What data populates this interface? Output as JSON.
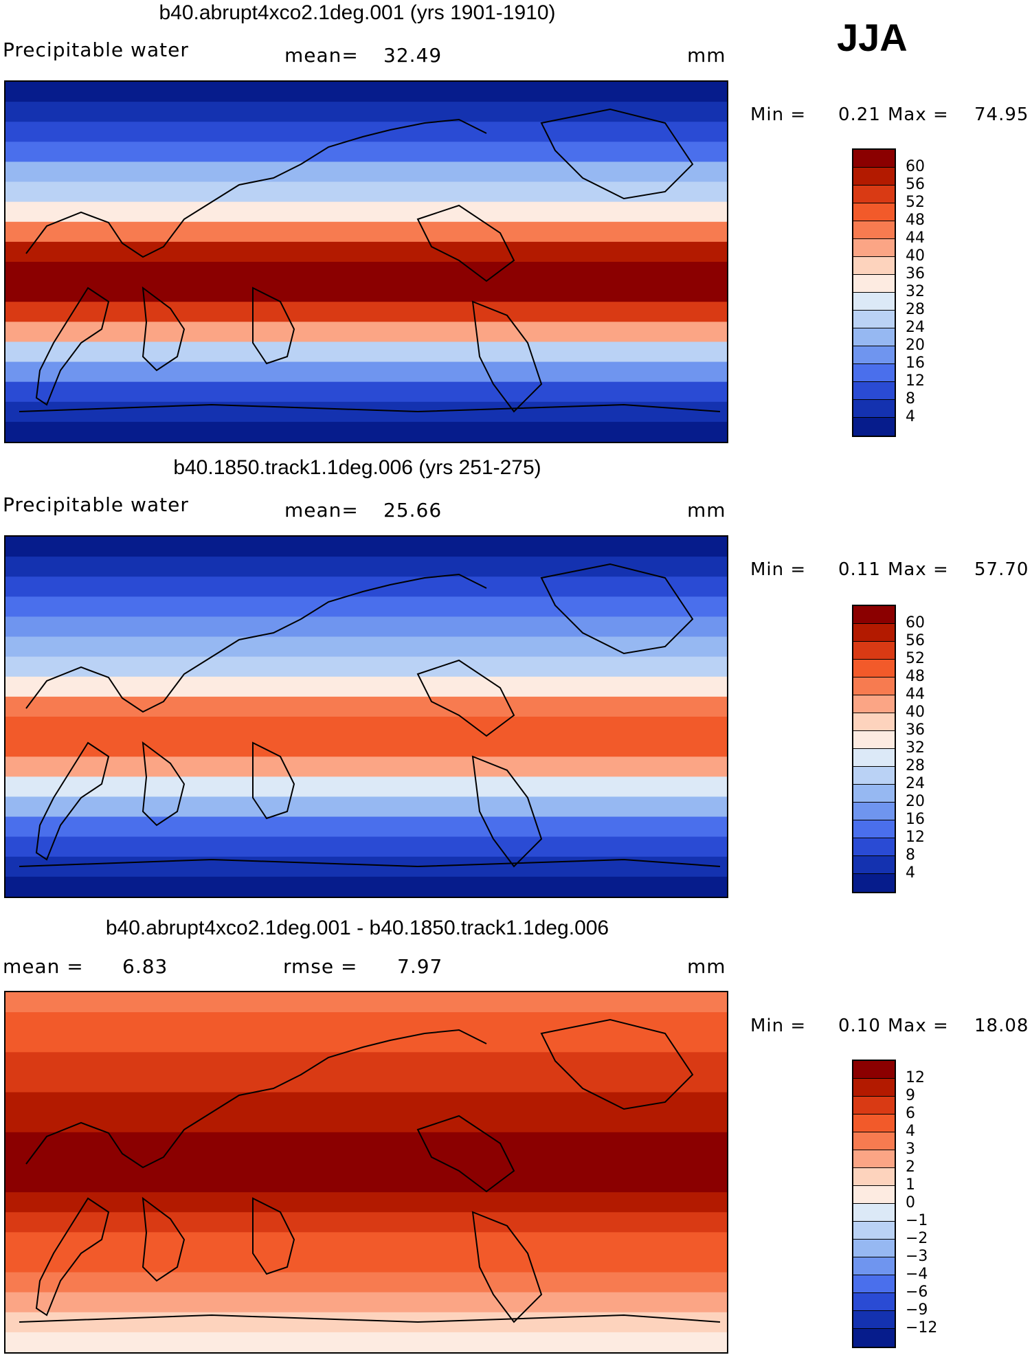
{
  "season": "JJA",
  "panels": [
    {
      "title": "b40.abrupt4xco2.1deg.001 (yrs 1901-1910)",
      "left_label": "Precipitable water",
      "mid_label": "mean=",
      "mid_value": "32.49",
      "units": "mm",
      "min_label": "Min =",
      "min_value": "0.21",
      "max_label": "Max =",
      "max_value": "74.95",
      "levels": [
        "60",
        "56",
        "52",
        "48",
        "44",
        "40",
        "36",
        "32",
        "28",
        "24",
        "20",
        "16",
        "12",
        "8",
        "4"
      ],
      "colors": [
        "#8b0000",
        "#b31a00",
        "#d93a14",
        "#f25a2a",
        "#f77b50",
        "#fba585",
        "#fdd3bd",
        "#fdebe1",
        "#dce9f7",
        "#bad2f5",
        "#96b8f2",
        "#6f95ef",
        "#4a6fec",
        "#2a4bd4",
        "#1432b0",
        "#061c8c"
      ]
    },
    {
      "title": "b40.1850.track1.1deg.006 (yrs 251-275)",
      "left_label": "Precipitable water",
      "mid_label": "mean=",
      "mid_value": "25.66",
      "units": "mm",
      "min_label": "Min =",
      "min_value": "0.11",
      "max_label": "Max =",
      "max_value": "57.70",
      "levels": [
        "60",
        "56",
        "52",
        "48",
        "44",
        "40",
        "36",
        "32",
        "28",
        "24",
        "20",
        "16",
        "12",
        "8",
        "4"
      ],
      "colors": [
        "#8b0000",
        "#b31a00",
        "#d93a14",
        "#f25a2a",
        "#f77b50",
        "#fba585",
        "#fdd3bd",
        "#fdebe1",
        "#dce9f7",
        "#bad2f5",
        "#96b8f2",
        "#6f95ef",
        "#4a6fec",
        "#2a4bd4",
        "#1432b0",
        "#061c8c"
      ]
    },
    {
      "title": "b40.abrupt4xco2.1deg.001 - b40.1850.track1.1deg.006",
      "left_label": "mean =",
      "left_value": "6.83",
      "mid_label": "rmse =",
      "mid_value": "7.97",
      "units": "mm",
      "min_label": "Min =",
      "min_value": "0.10",
      "max_label": "Max =",
      "max_value": "18.08",
      "levels": [
        "12",
        "9",
        "6",
        "4",
        "3",
        "2",
        "1",
        "0",
        "−1",
        "−2",
        "−3",
        "−4",
        "−6",
        "−9",
        "−12"
      ],
      "colors": [
        "#8b0000",
        "#b31a00",
        "#d93a14",
        "#f25a2a",
        "#f77b50",
        "#fba585",
        "#fdd3bd",
        "#fdebe1",
        "#dce9f7",
        "#bad2f5",
        "#96b8f2",
        "#6f95ef",
        "#4a6fec",
        "#2a4bd4",
        "#1432b0",
        "#061c8c"
      ]
    }
  ],
  "map_fields": [
    {
      "palette_index_by_band": [
        15,
        14,
        13,
        12,
        10,
        9,
        7,
        4,
        1,
        0,
        0,
        2,
        5,
        9,
        11,
        13,
        14,
        15
      ]
    },
    {
      "palette_index_by_band": [
        15,
        14,
        13,
        12,
        11,
        10,
        9,
        7,
        4,
        3,
        3,
        5,
        8,
        10,
        12,
        13,
        14,
        15
      ]
    },
    {
      "palette_index_by_band": [
        4,
        3,
        3,
        2,
        2,
        1,
        1,
        0,
        0,
        0,
        1,
        2,
        3,
        3,
        4,
        5,
        6,
        7
      ]
    }
  ]
}
